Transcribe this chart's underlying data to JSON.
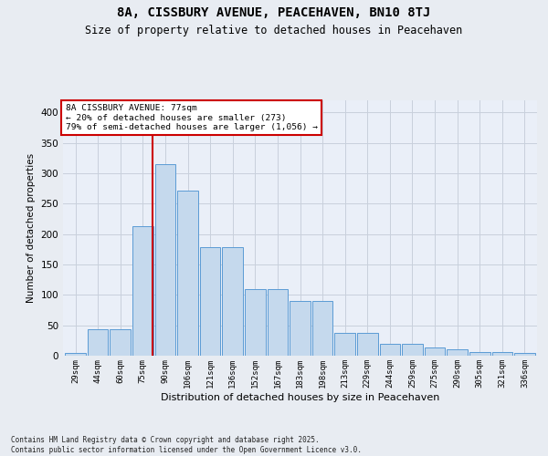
{
  "title": "8A, CISSBURY AVENUE, PEACEHAVEN, BN10 8TJ",
  "subtitle": "Size of property relative to detached houses in Peacehaven",
  "xlabel": "Distribution of detached houses by size in Peacehaven",
  "ylabel": "Number of detached properties",
  "categories": [
    "29sqm",
    "44sqm",
    "60sqm",
    "75sqm",
    "90sqm",
    "106sqm",
    "121sqm",
    "136sqm",
    "152sqm",
    "167sqm",
    "183sqm",
    "198sqm",
    "213sqm",
    "229sqm",
    "244sqm",
    "259sqm",
    "275sqm",
    "290sqm",
    "305sqm",
    "321sqm",
    "336sqm"
  ],
  "values": [
    5,
    43,
    43,
    213,
    315,
    272,
    179,
    179,
    110,
    110,
    90,
    90,
    38,
    38,
    20,
    20,
    14,
    10,
    6,
    6,
    5
  ],
  "bar_color": "#c5d9ed",
  "bar_edge_color": "#5b9bd5",
  "vline_color": "#cc0000",
  "vline_position": 3.45,
  "annotation_text": "8A CISSBURY AVENUE: 77sqm\n← 20% of detached houses are smaller (273)\n79% of semi-detached houses are larger (1,056) →",
  "ylim": [
    0,
    420
  ],
  "yticks": [
    0,
    50,
    100,
    150,
    200,
    250,
    300,
    350,
    400
  ],
  "grid_color": "#c8d0dc",
  "bg_color": "#e8ecf2",
  "plot_bg_color": "#eaeff8",
  "footnote": "Contains HM Land Registry data © Crown copyright and database right 2025.\nContains public sector information licensed under the Open Government Licence v3.0."
}
